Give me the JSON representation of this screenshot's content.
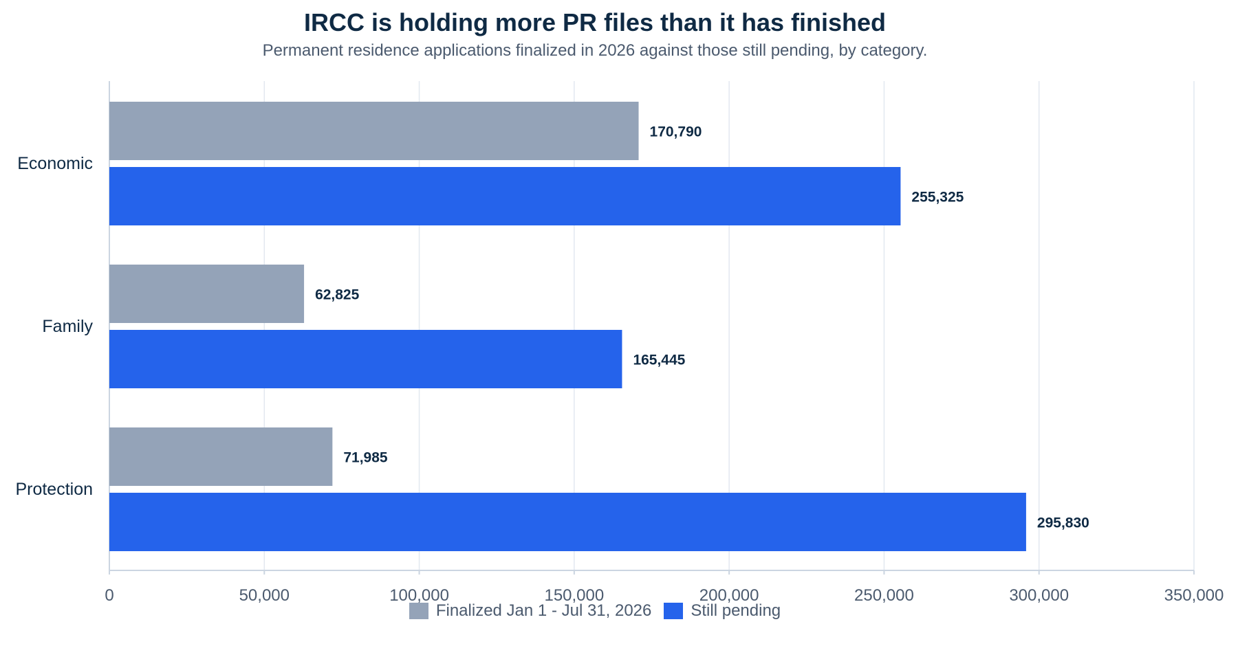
{
  "chart_data": {
    "type": "bar",
    "orientation": "horizontal",
    "title": "IRCC is holding more PR files than it has finished",
    "subtitle": "Permanent residence applications finalized in 2026 against those still pending, by category.",
    "categories": [
      "Economic",
      "Family",
      "Protection"
    ],
    "series": [
      {
        "name": "Finalized Jan 1 - Jul 31, 2026",
        "color": "#94a3b8",
        "values": [
          170790,
          62825,
          71985
        ],
        "labels": [
          "170,790",
          "62,825",
          "71,985"
        ]
      },
      {
        "name": "Still pending",
        "color": "#2563eb",
        "values": [
          255325,
          165445,
          295830
        ],
        "labels": [
          "255,325",
          "165,445",
          "295,830"
        ]
      }
    ],
    "xlim": [
      0,
      350000
    ],
    "xticks": [
      0,
      50000,
      100000,
      150000,
      200000,
      250000,
      300000,
      350000
    ],
    "xtick_labels": [
      "0",
      "50,000",
      "100,000",
      "150,000",
      "200,000",
      "250,000",
      "300,000",
      "350,000"
    ],
    "grid": "vertical",
    "legend_position": "bottom-center"
  }
}
